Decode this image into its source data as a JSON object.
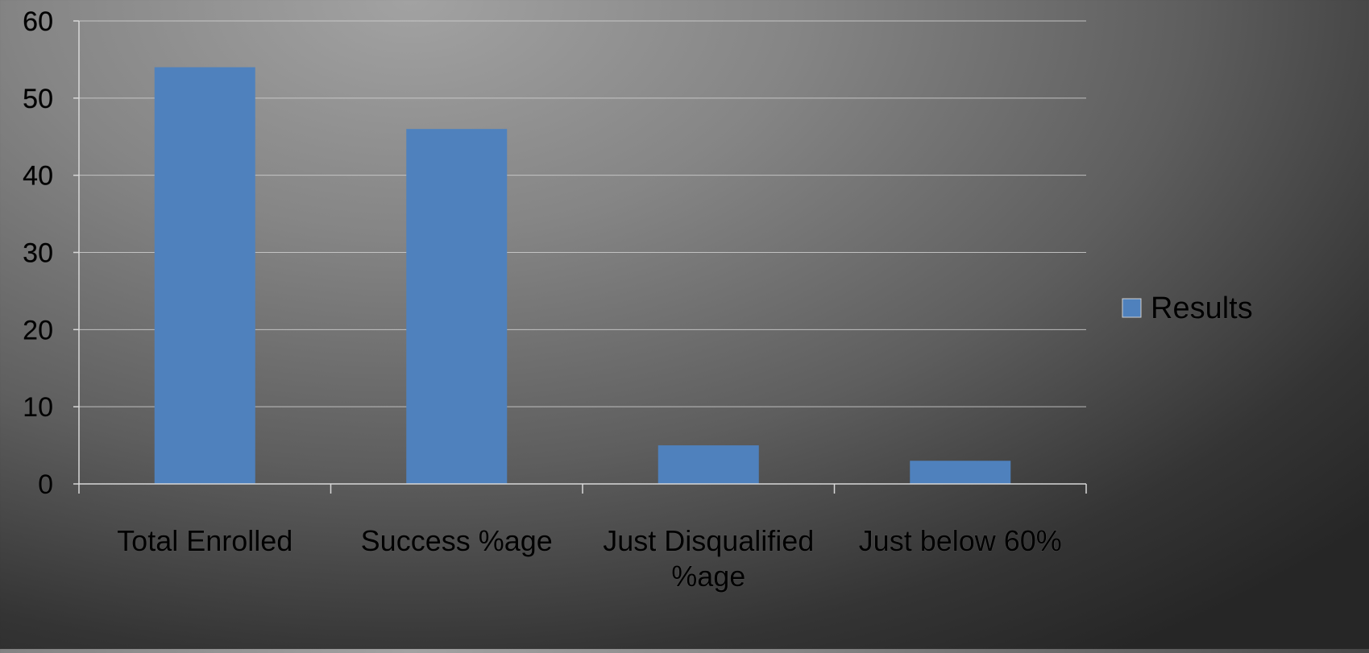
{
  "chart_data": {
    "type": "bar",
    "categories": [
      "Total Enrolled",
      "Success %age",
      "Just Disqualified %age",
      "Just below 60%"
    ],
    "category_lines": [
      [
        "Total Enrolled"
      ],
      [
        "Success %age"
      ],
      [
        "Just Disqualified",
        "%age"
      ],
      [
        "Just below 60%"
      ]
    ],
    "series": [
      {
        "name": "Results",
        "values": [
          54,
          46,
          5,
          3
        ],
        "color": "#4f81bd"
      }
    ],
    "ylim": [
      0,
      60
    ],
    "yticks": [
      "0",
      "10",
      "20",
      "30",
      "40",
      "50",
      "60"
    ],
    "grid": true,
    "legend": "right",
    "title": "",
    "xlabel": "",
    "ylabel": ""
  }
}
